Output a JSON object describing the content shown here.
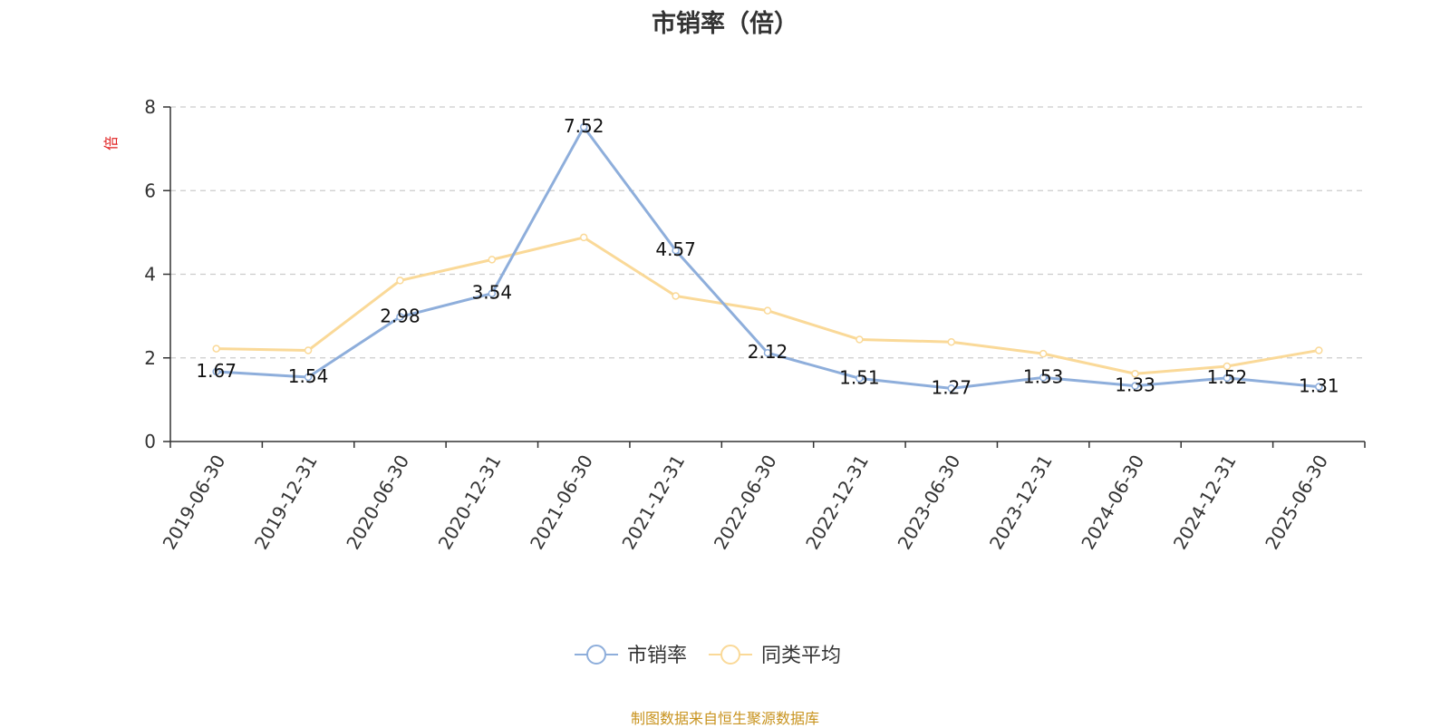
{
  "title": "市销率（倍）",
  "source": "制图数据来自恒生聚源数据库",
  "chart_data": {
    "type": "line",
    "title": "市销率（倍）",
    "ylabel": "倍",
    "xlabel": "",
    "ylim": [
      0,
      8
    ],
    "yticks": [
      0,
      2,
      4,
      6,
      8
    ],
    "grid": true,
    "legend_position": "bottom-center",
    "categories": [
      "2019-06-30",
      "2019-12-31",
      "2020-06-30",
      "2020-12-31",
      "2021-06-30",
      "2021-12-31",
      "2022-06-30",
      "2022-12-31",
      "2023-06-30",
      "2023-12-31",
      "2024-06-30",
      "2024-12-31",
      "2025-06-30"
    ],
    "series": [
      {
        "name": "市销率",
        "color": "#8eaedb",
        "values": [
          1.67,
          1.54,
          2.98,
          3.54,
          7.52,
          4.57,
          2.12,
          1.51,
          1.27,
          1.53,
          1.33,
          1.52,
          1.31
        ],
        "labels": [
          "1.67",
          "1.54",
          "2.98",
          "3.54",
          "7.52",
          "4.57",
          "2.12",
          "1.51",
          "1.27",
          "1.53",
          "1.33",
          "1.52",
          "1.31"
        ]
      },
      {
        "name": "同类平均",
        "color": "#fad998",
        "values": [
          2.22,
          2.18,
          3.85,
          4.35,
          4.88,
          3.48,
          3.13,
          2.44,
          2.38,
          2.1,
          1.62,
          1.8,
          2.18
        ]
      }
    ],
    "ylabel_color": "#e02020",
    "source_color": "#c8931e"
  }
}
